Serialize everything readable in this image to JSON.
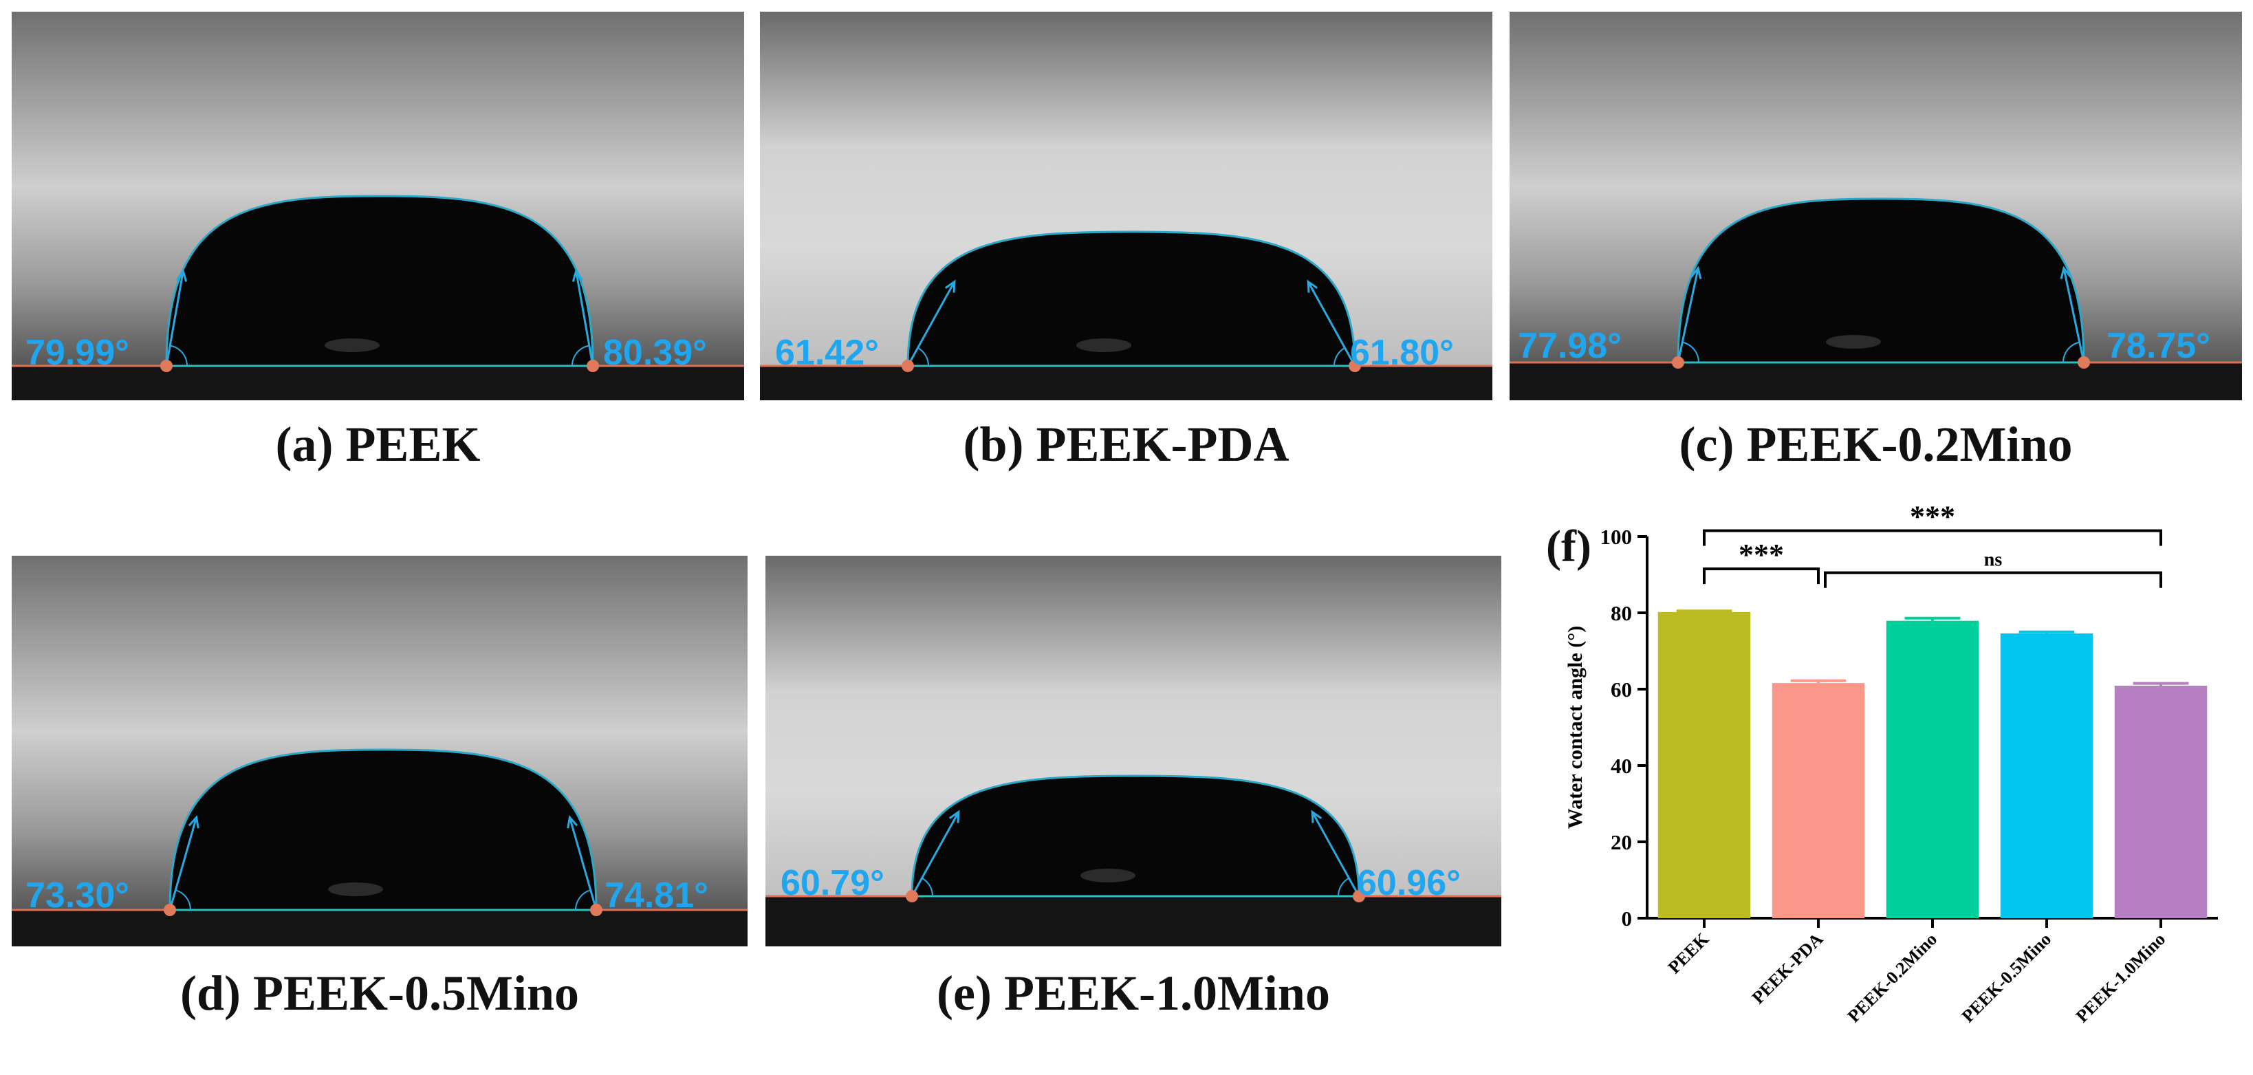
{
  "panels": [
    {
      "id": "a",
      "caption": "(a) PEEK",
      "left_angle": "79.99°",
      "right_angle": "80.39°"
    },
    {
      "id": "b",
      "caption": "(b) PEEK-PDA",
      "left_angle": "61.42°",
      "right_angle": "61.80°"
    },
    {
      "id": "c",
      "caption": "(c) PEEK-0.2Mino",
      "left_angle": "77.98°",
      "right_angle": "78.75°"
    },
    {
      "id": "d",
      "caption": "(d) PEEK-0.5Mino",
      "left_angle": "73.30°",
      "right_angle": "74.81°"
    },
    {
      "id": "e",
      "caption": "(e) PEEK-1.0Mino",
      "left_angle": "60.79°",
      "right_angle": "60.96°"
    }
  ],
  "chart_panel_label": "(f)",
  "chart_data": {
    "type": "bar",
    "categories": [
      "PEEK",
      "PEEK-PDA",
      "PEEK-0.2Mino",
      "PEEK-0.5Mino",
      "PEEK-1.0Mino"
    ],
    "values": [
      80.2,
      61.6,
      77.9,
      74.6,
      60.9
    ],
    "errors": [
      0.3,
      0.6,
      0.7,
      0.4,
      0.6
    ],
    "colors": [
      "#bcbc22",
      "#fc978b",
      "#00d09c",
      "#00c6f0",
      "#b57fc2"
    ],
    "ylabel": "Water contact angle (°)",
    "xlabel": "",
    "ylim": [
      0,
      100
    ],
    "yticks": [
      0,
      20,
      40,
      60,
      80,
      100
    ],
    "significance": [
      {
        "from": 0,
        "to": 1,
        "label": "***"
      },
      {
        "from": 1,
        "to": 4,
        "label": "ns"
      },
      {
        "from": 0,
        "to": 4,
        "label": "***"
      }
    ]
  }
}
